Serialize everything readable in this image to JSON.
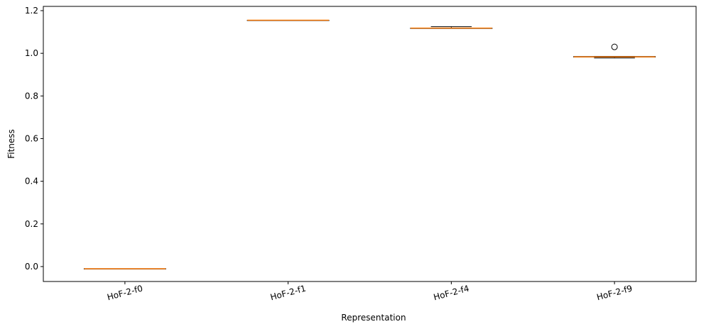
{
  "chart_data": {
    "type": "box",
    "xlabel": "Representation",
    "ylabel": "Fitness",
    "ylim": [
      -0.07,
      1.22
    ],
    "yticks": [
      0.0,
      0.2,
      0.4,
      0.6,
      0.8,
      1.0,
      1.2
    ],
    "ytick_labels": [
      "0.0",
      "0.2",
      "0.4",
      "0.6",
      "0.8",
      "1.0",
      "1.2"
    ],
    "categories": [
      "HoF-2-f0",
      "HoF-2-f1",
      "HoF-2-f4",
      "HoF-2-f9"
    ],
    "boxes": [
      {
        "whislo": -0.01,
        "q1": -0.01,
        "med": -0.01,
        "q3": -0.01,
        "whishi": -0.01,
        "fliers": []
      },
      {
        "whislo": 1.155,
        "q1": 1.155,
        "med": 1.155,
        "q3": 1.155,
        "whishi": 1.155,
        "fliers": []
      },
      {
        "whislo": 1.118,
        "q1": 1.118,
        "med": 1.118,
        "q3": 1.118,
        "whishi": 1.125,
        "fliers": []
      },
      {
        "whislo": 0.978,
        "q1": 0.982,
        "med": 0.983,
        "q3": 0.985,
        "whishi": 0.985,
        "fliers": [
          1.03
        ]
      }
    ],
    "grid": false,
    "colors": {
      "median": "#ff7f0e",
      "box": "#000000",
      "flier": "#000000"
    }
  }
}
